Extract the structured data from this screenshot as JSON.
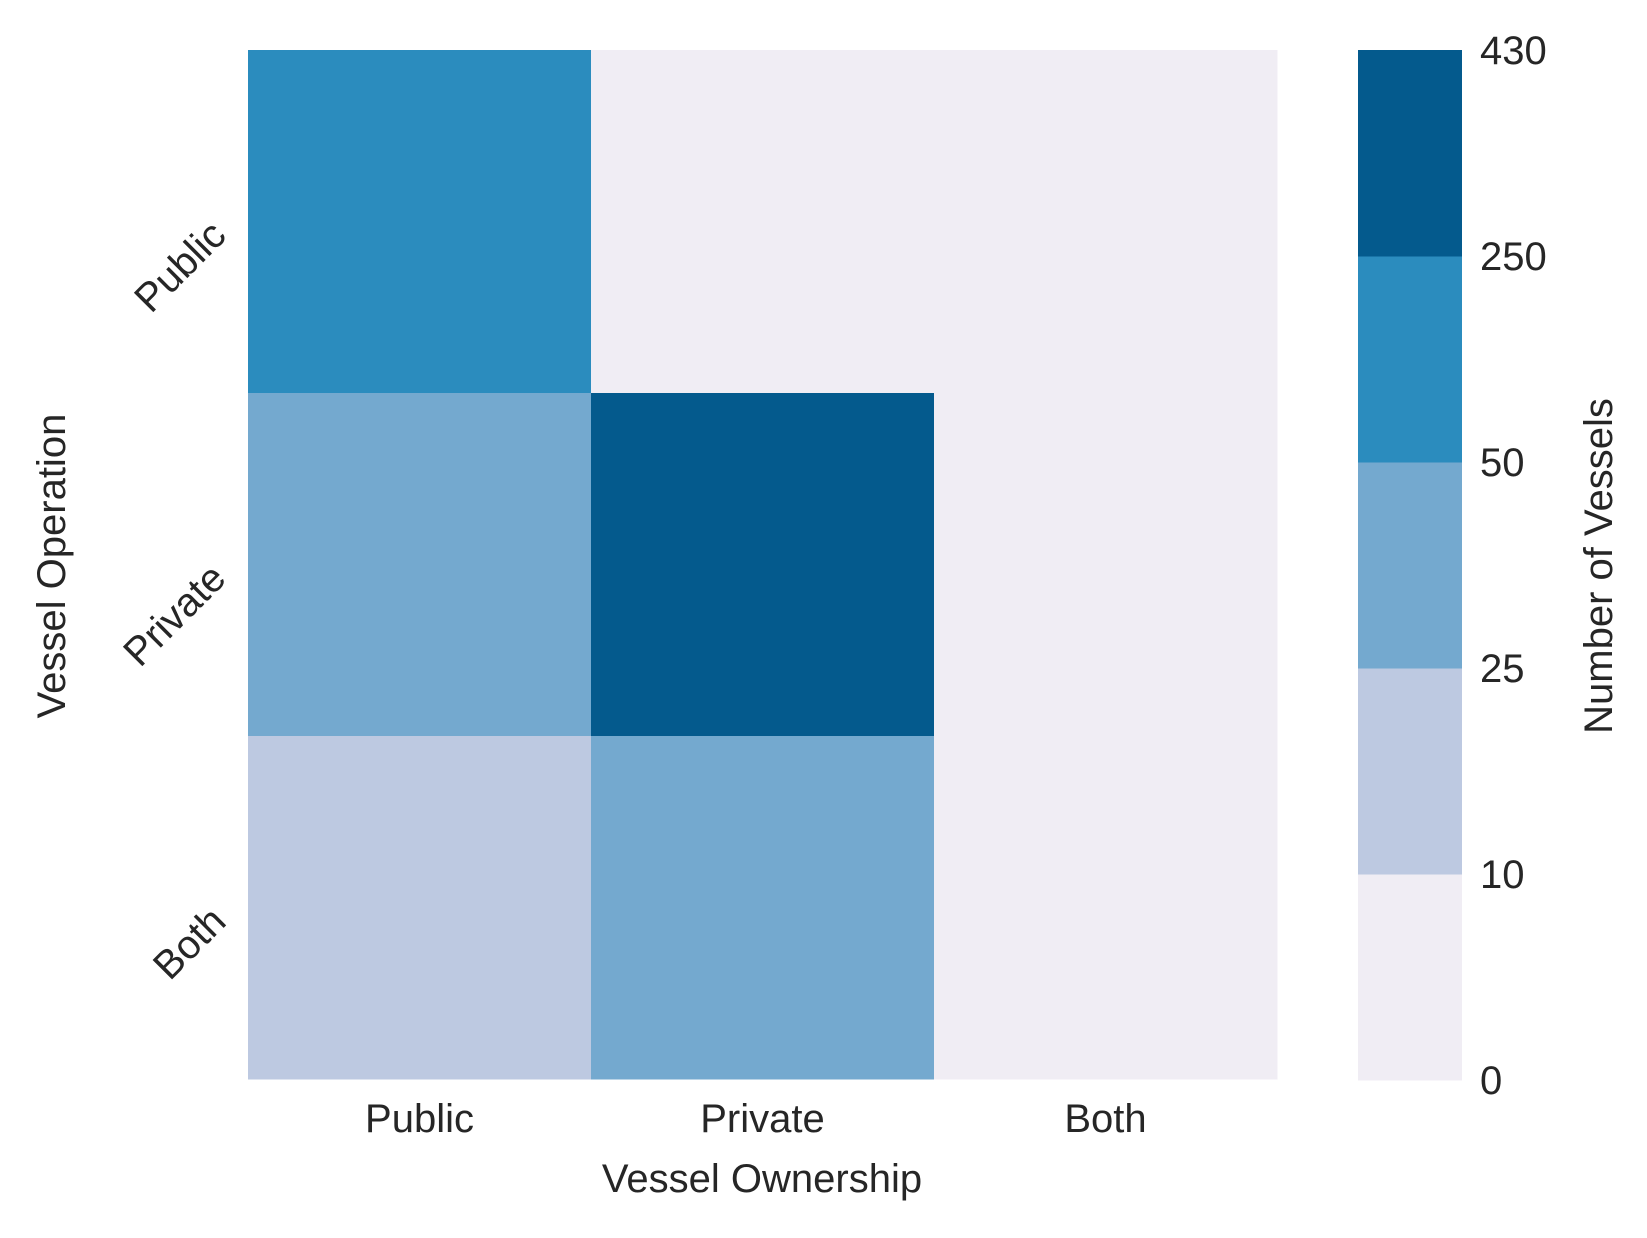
{
  "chart_data": {
    "type": "heatmap",
    "xlabel": "Vessel Ownership",
    "ylabel": "Vessel Operation",
    "x_categories": [
      "Public",
      "Private",
      "Both"
    ],
    "y_categories": [
      "Public",
      "Private",
      "Both"
    ],
    "cell_bins": [
      [
        3,
        0,
        0
      ],
      [
        2,
        4,
        0
      ],
      [
        1,
        2,
        0
      ]
    ],
    "colorbar": {
      "label": "Number of Vessels",
      "boundaries": [
        "0",
        "10",
        "25",
        "50",
        "250",
        "430"
      ],
      "colors": [
        "#f0edf4",
        "#bdc9e1",
        "#74a9cf",
        "#2b8cbe",
        "#045a8d"
      ]
    },
    "grid": false
  }
}
